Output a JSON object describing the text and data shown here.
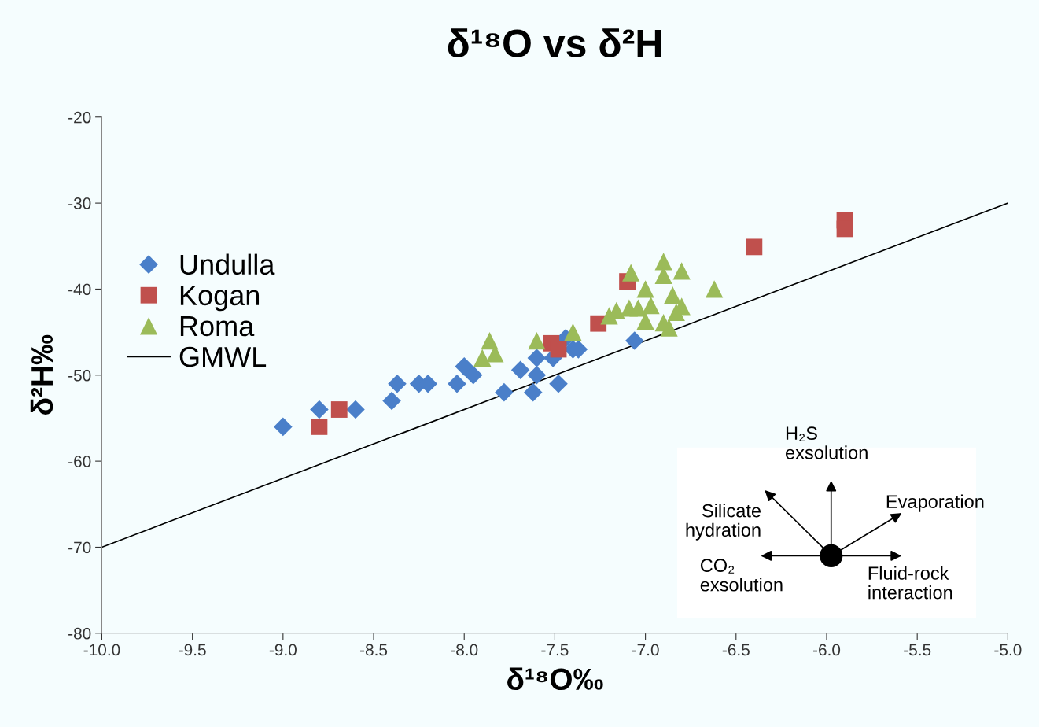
{
  "chart_data": {
    "type": "scatter",
    "title": "δ¹⁸O vs δ²H",
    "xlabel": "δ¹⁸O‰",
    "ylabel": "δ²H‰",
    "xlim": [
      -10,
      -5
    ],
    "ylim": [
      -80,
      -20
    ],
    "xticks": [
      {
        "value": -10,
        "label": "-10.0"
      },
      {
        "value": -9.5,
        "label": "-9.5"
      },
      {
        "value": -9,
        "label": "-9.0"
      },
      {
        "value": -8.5,
        "label": "-8.5"
      },
      {
        "value": -8,
        "label": "-8.0"
      },
      {
        "value": -7.5,
        "label": "-7.5"
      },
      {
        "value": -7,
        "label": "-7.0"
      },
      {
        "value": -6.5,
        "label": "-6.5"
      },
      {
        "value": -6,
        "label": "-6.0"
      },
      {
        "value": -5.5,
        "label": "-5.5"
      },
      {
        "value": -5,
        "label": "-5.0"
      }
    ],
    "yticks": [
      -80,
      -70,
      -60,
      -50,
      -40,
      -30,
      -20
    ],
    "grid": false,
    "legend": "left",
    "annotations": [
      "H₂S exsolution",
      "Evaporation",
      "Silicate hydration",
      "CO₂ exsolution",
      "Fluid-rock interaction"
    ],
    "series": [
      {
        "name": "Undulla",
        "color": "#4a7fc9",
        "marker": "diamond",
        "x": [
          -9.0,
          -8.8,
          -8.6,
          -8.4,
          -8.37,
          -8.25,
          -8.2,
          -8.04,
          -8.0,
          -7.95,
          -7.78,
          -7.69,
          -7.62,
          -7.6,
          -7.6,
          -7.48,
          -7.51,
          -7.45,
          -7.4,
          -7.37,
          -7.44,
          -7.06
        ],
        "values": [
          -56,
          -54,
          -54,
          -53,
          -51,
          -51,
          -51,
          -51,
          -49,
          -50,
          -52,
          -49.4,
          -52,
          -50,
          -48,
          -51,
          -48,
          null,
          -47,
          -47,
          -45.7,
          -46
        ]
      },
      {
        "name": "Kogan",
        "color": "#c0504d",
        "marker": "square",
        "x": [
          -8.8,
          -8.69,
          -7.52,
          -7.48,
          -7.26,
          -7.1,
          -6.4,
          -5.9,
          -5.9
        ],
        "values": [
          -56,
          -54,
          -46.3,
          -47,
          -44,
          -39.1,
          -35.1,
          -32,
          -33
        ]
      },
      {
        "name": "Roma",
        "color": "#9bbb59",
        "marker": "triangle",
        "x": [
          -7.86,
          -7.83,
          -7.9,
          -7.6,
          -7.4,
          -7.2,
          -7.16,
          -7.09,
          -7.08,
          -7.04,
          -7.0,
          -7.0,
          -6.97,
          -6.9,
          -6.9,
          -6.9,
          -6.87,
          -6.85,
          -6.8,
          -6.8,
          -6.62,
          -6.83
        ],
        "values": [
          -46,
          -47.5,
          -48,
          -46,
          -45,
          -43.1,
          -42.5,
          -42.2,
          -38.1,
          -42.2,
          -40,
          -43.7,
          -41.9,
          -36.8,
          -38.4,
          -43.9,
          -44.5,
          -40.7,
          -37.9,
          -42,
          -40,
          -42.7
        ]
      },
      {
        "name": "GMWL",
        "type": "line",
        "color": "#000000",
        "marker": "none",
        "line_style": "solid",
        "x": [
          -10,
          -5
        ],
        "values": [
          -70,
          -30
        ]
      }
    ]
  }
}
